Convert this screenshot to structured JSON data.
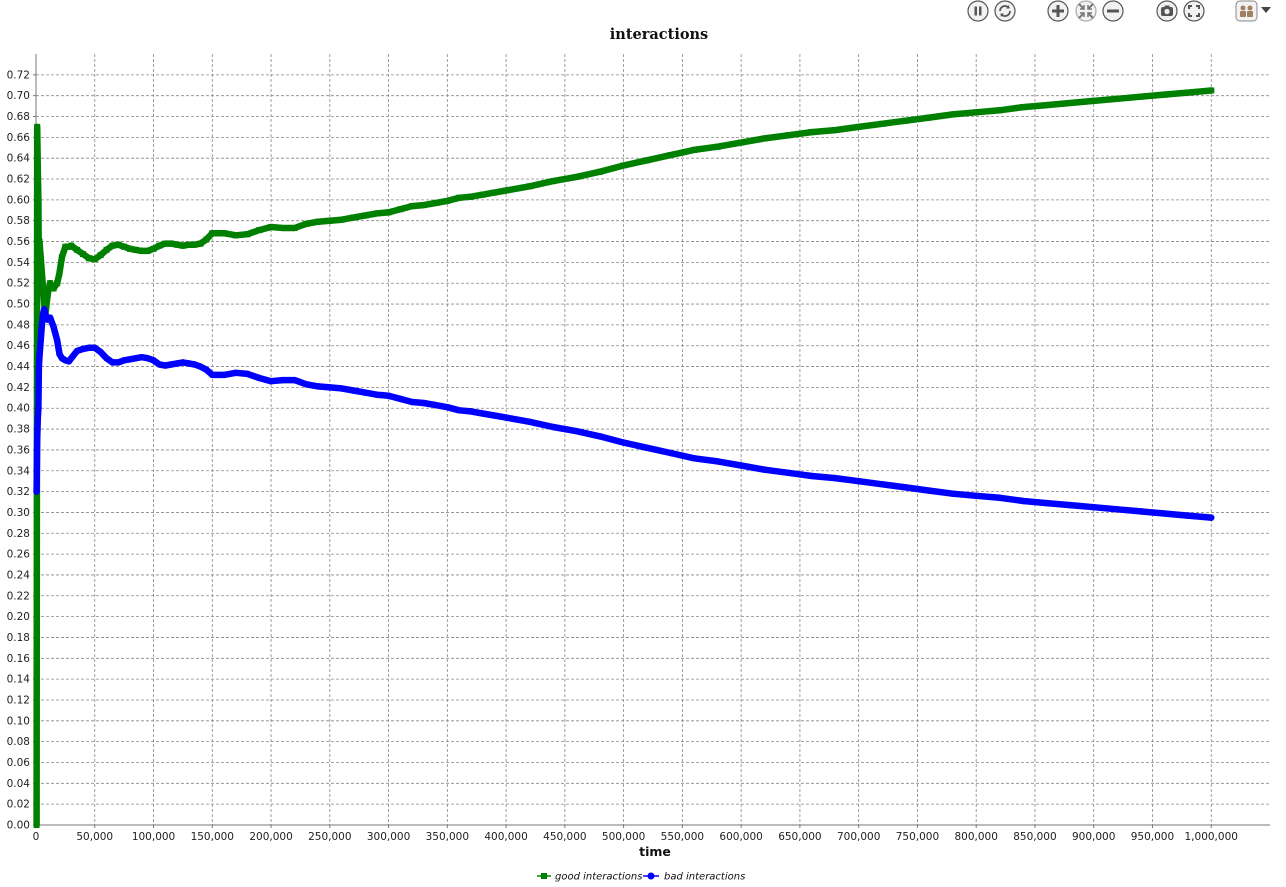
{
  "toolbar": {
    "buttons": [
      {
        "name": "pause-button",
        "icon": "pause-icon"
      },
      {
        "name": "refresh-button",
        "icon": "refresh-icon"
      },
      {
        "name": "zoom-in-button",
        "icon": "zoom-in-icon"
      },
      {
        "name": "fit-button",
        "icon": "fit-icon"
      },
      {
        "name": "zoom-out-button",
        "icon": "zoom-out-icon"
      },
      {
        "name": "snapshot-button",
        "icon": "camera-icon"
      },
      {
        "name": "fullscreen-button",
        "icon": "fullscreen-icon"
      },
      {
        "name": "options-button",
        "icon": "options-icon"
      }
    ]
  },
  "chart_data": {
    "type": "line",
    "title": "interactions",
    "xlabel": "time",
    "ylabel": "",
    "xlim": [
      0,
      1050000
    ],
    "ylim": [
      0,
      0.74
    ],
    "grid": true,
    "legend_position": "bottom-center",
    "x_ticks": [
      "0",
      "50,000",
      "100,000",
      "150,000",
      "200,000",
      "250,000",
      "300,000",
      "350,000",
      "400,000",
      "450,000",
      "500,000",
      "550,000",
      "600,000",
      "650,000",
      "700,000",
      "750,000",
      "800,000",
      "850,000",
      "900,000",
      "950,000",
      "1,000,000"
    ],
    "y_ticks": [
      "0.00",
      "0.02",
      "0.04",
      "0.06",
      "0.08",
      "0.10",
      "0.12",
      "0.14",
      "0.16",
      "0.18",
      "0.20",
      "0.22",
      "0.24",
      "0.26",
      "0.28",
      "0.30",
      "0.32",
      "0.34",
      "0.36",
      "0.38",
      "0.40",
      "0.42",
      "0.44",
      "0.46",
      "0.48",
      "0.50",
      "0.52",
      "0.54",
      "0.56",
      "0.58",
      "0.60",
      "0.62",
      "0.64",
      "0.66",
      "0.68",
      "0.70",
      "0.72"
    ],
    "series": [
      {
        "name": "good interactions",
        "color": "#008000",
        "marker": "square",
        "x": [
          500,
          1000,
          1500,
          2000,
          2500,
          3000,
          4000,
          5000,
          6000,
          7000,
          8000,
          10000,
          12000,
          15000,
          18000,
          20000,
          22000,
          25000,
          28000,
          30000,
          35000,
          40000,
          45000,
          50000,
          55000,
          60000,
          65000,
          70000,
          75000,
          80000,
          85000,
          90000,
          95000,
          100000,
          105000,
          110000,
          115000,
          120000,
          125000,
          130000,
          135000,
          140000,
          145000,
          150000,
          160000,
          170000,
          180000,
          190000,
          200000,
          210000,
          220000,
          230000,
          240000,
          250000,
          260000,
          270000,
          280000,
          290000,
          300000,
          310000,
          320000,
          330000,
          340000,
          350000,
          360000,
          370000,
          380000,
          390000,
          400000,
          420000,
          440000,
          460000,
          480000,
          500000,
          520000,
          540000,
          560000,
          580000,
          600000,
          620000,
          640000,
          660000,
          680000,
          700000,
          720000,
          740000,
          760000,
          780000,
          800000,
          820000,
          840000,
          860000,
          880000,
          900000,
          920000,
          940000,
          960000,
          980000,
          1000000
        ],
        "values": [
          0.0,
          0.67,
          0.63,
          0.6,
          0.53,
          0.56,
          0.545,
          0.53,
          0.515,
          0.5,
          0.49,
          0.51,
          0.52,
          0.515,
          0.52,
          0.53,
          0.545,
          0.555,
          0.555,
          0.556,
          0.552,
          0.548,
          0.544,
          0.543,
          0.547,
          0.552,
          0.556,
          0.557,
          0.555,
          0.553,
          0.552,
          0.551,
          0.551,
          0.553,
          0.556,
          0.558,
          0.558,
          0.557,
          0.556,
          0.557,
          0.557,
          0.558,
          0.562,
          0.568,
          0.568,
          0.566,
          0.567,
          0.571,
          0.574,
          0.573,
          0.573,
          0.577,
          0.579,
          0.58,
          0.581,
          0.583,
          0.585,
          0.587,
          0.588,
          0.591,
          0.594,
          0.595,
          0.597,
          0.599,
          0.602,
          0.603,
          0.605,
          0.607,
          0.609,
          0.613,
          0.618,
          0.622,
          0.627,
          0.633,
          0.638,
          0.643,
          0.648,
          0.651,
          0.655,
          0.659,
          0.662,
          0.665,
          0.667,
          0.67,
          0.673,
          0.676,
          0.679,
          0.682,
          0.684,
          0.686,
          0.689,
          0.691,
          0.693,
          0.695,
          0.697,
          0.699,
          0.701,
          0.703,
          0.705
        ]
      },
      {
        "name": "bad interactions",
        "color": "#0000ff",
        "marker": "circle",
        "x": [
          500,
          1000,
          1500,
          2000,
          2500,
          3000,
          4000,
          5000,
          6000,
          7000,
          8000,
          10000,
          12000,
          15000,
          18000,
          20000,
          22000,
          25000,
          28000,
          30000,
          35000,
          40000,
          45000,
          50000,
          55000,
          60000,
          65000,
          70000,
          75000,
          80000,
          85000,
          90000,
          95000,
          100000,
          105000,
          110000,
          115000,
          120000,
          125000,
          130000,
          135000,
          140000,
          145000,
          150000,
          160000,
          170000,
          180000,
          190000,
          200000,
          210000,
          220000,
          230000,
          240000,
          250000,
          260000,
          270000,
          280000,
          290000,
          300000,
          310000,
          320000,
          330000,
          340000,
          350000,
          360000,
          370000,
          380000,
          390000,
          400000,
          420000,
          440000,
          460000,
          480000,
          500000,
          520000,
          540000,
          560000,
          580000,
          600000,
          620000,
          640000,
          660000,
          680000,
          700000,
          720000,
          740000,
          760000,
          780000,
          800000,
          820000,
          840000,
          860000,
          880000,
          900000,
          920000,
          940000,
          960000,
          980000,
          1000000
        ],
        "values": [
          0.32,
          0.37,
          0.39,
          0.4,
          0.44,
          0.45,
          0.465,
          0.48,
          0.49,
          0.495,
          0.49,
          0.485,
          0.487,
          0.478,
          0.465,
          0.452,
          0.448,
          0.446,
          0.445,
          0.448,
          0.455,
          0.457,
          0.458,
          0.458,
          0.454,
          0.448,
          0.444,
          0.444,
          0.446,
          0.447,
          0.448,
          0.449,
          0.448,
          0.446,
          0.442,
          0.441,
          0.442,
          0.443,
          0.444,
          0.443,
          0.442,
          0.44,
          0.437,
          0.432,
          0.432,
          0.434,
          0.433,
          0.429,
          0.426,
          0.427,
          0.427,
          0.423,
          0.421,
          0.42,
          0.419,
          0.417,
          0.415,
          0.413,
          0.412,
          0.409,
          0.406,
          0.405,
          0.403,
          0.401,
          0.398,
          0.397,
          0.395,
          0.393,
          0.391,
          0.387,
          0.382,
          0.378,
          0.373,
          0.367,
          0.362,
          0.357,
          0.352,
          0.349,
          0.345,
          0.341,
          0.338,
          0.335,
          0.333,
          0.33,
          0.327,
          0.324,
          0.321,
          0.318,
          0.316,
          0.314,
          0.311,
          0.309,
          0.307,
          0.305,
          0.303,
          0.301,
          0.299,
          0.297,
          0.295
        ]
      }
    ]
  }
}
